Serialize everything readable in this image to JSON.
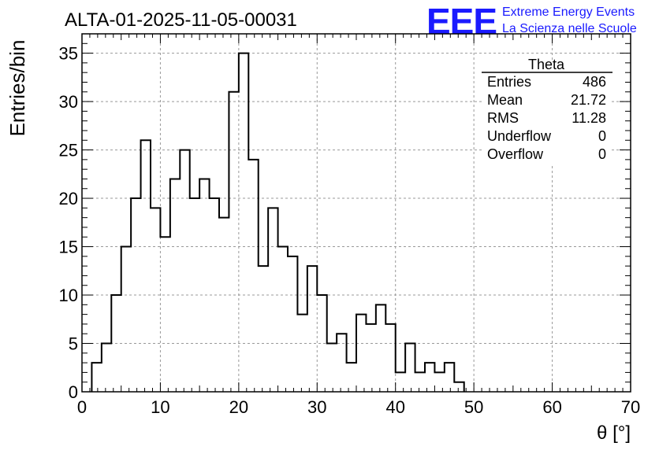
{
  "header": {
    "run_title": "ALTA-01-2025-11-05-00031",
    "logo_text": "EEE",
    "brand_line1": "Extreme Energy Events",
    "brand_line2": "La Scienza nelle Scuole"
  },
  "stats_box": {
    "title": "Theta",
    "rows": [
      {
        "label": "Entries",
        "value": "486"
      },
      {
        "label": "Mean",
        "value": "21.72"
      },
      {
        "label": "RMS",
        "value": "11.28"
      },
      {
        "label": "Underflow",
        "value": "0"
      },
      {
        "label": "Overflow",
        "value": "0"
      }
    ]
  },
  "colors": {
    "brand": "#1a1aff",
    "histogram": "#000000",
    "grid": "#999999"
  },
  "chart_data": {
    "type": "bar",
    "style": "step-histogram",
    "title": "ALTA-01-2025-11-05-00031",
    "xlabel": "θ [°]",
    "ylabel": "Entries/bin",
    "xlim": [
      0,
      70
    ],
    "ylim": [
      0,
      37
    ],
    "bin_width": 1.25,
    "bin_start": 1.25,
    "values": [
      3,
      5,
      10,
      15,
      20,
      26,
      19,
      16,
      22,
      25,
      20,
      22,
      20,
      18,
      31,
      35,
      24,
      13,
      19,
      15,
      14,
      8,
      13,
      10,
      5,
      6,
      3,
      8,
      7,
      9,
      7,
      2,
      5,
      2,
      3,
      2,
      3,
      1
    ],
    "x_ticks": [
      "0",
      "10",
      "20",
      "30",
      "40",
      "50",
      "60",
      "70"
    ],
    "y_ticks": [
      "0",
      "5",
      "10",
      "15",
      "20",
      "25",
      "30",
      "35"
    ],
    "grid": true,
    "legend": "top-right stats box"
  }
}
